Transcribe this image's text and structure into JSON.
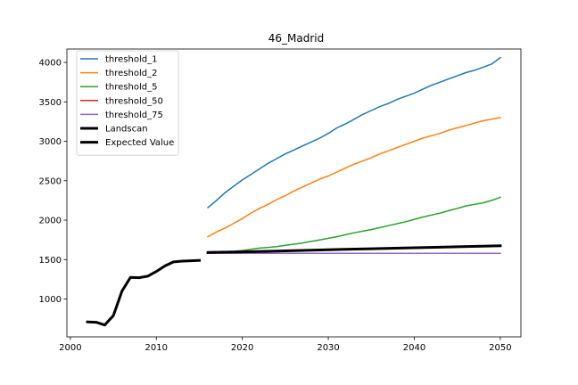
{
  "chart_data": {
    "type": "line",
    "title": "46_Madrid",
    "xlabel": "",
    "ylabel": "",
    "xlim": [
      1999.6,
      2052.4
    ],
    "ylim": [
      520,
      4170
    ],
    "xticks": [
      2000,
      2010,
      2020,
      2030,
      2040,
      2050
    ],
    "yticks": [
      1000,
      1500,
      2000,
      2500,
      3000,
      3500,
      4000
    ],
    "grid": false,
    "legend_position": "top-left",
    "series": [
      {
        "name": "threshold_1",
        "color": "#1f77b4",
        "width": 1.5,
        "x": [
          2016,
          2017,
          2018,
          2019,
          2020,
          2021,
          2022,
          2023,
          2024,
          2025,
          2026,
          2027,
          2028,
          2029,
          2030,
          2031,
          2032,
          2033,
          2034,
          2035,
          2036,
          2037,
          2038,
          2039,
          2040,
          2041,
          2042,
          2043,
          2044,
          2045,
          2046,
          2047,
          2048,
          2049,
          2050
        ],
        "y": [
          2160,
          2250,
          2350,
          2430,
          2510,
          2580,
          2650,
          2720,
          2780,
          2840,
          2890,
          2940,
          2990,
          3040,
          3100,
          3170,
          3220,
          3280,
          3340,
          3390,
          3440,
          3480,
          3530,
          3570,
          3610,
          3660,
          3710,
          3750,
          3790,
          3830,
          3870,
          3900,
          3940,
          3980,
          4060
        ]
      },
      {
        "name": "threshold_2",
        "color": "#ff7f0e",
        "width": 1.5,
        "x": [
          2016,
          2017,
          2018,
          2019,
          2020,
          2021,
          2022,
          2023,
          2024,
          2025,
          2026,
          2027,
          2028,
          2029,
          2030,
          2031,
          2032,
          2033,
          2034,
          2035,
          2036,
          2037,
          2038,
          2039,
          2040,
          2041,
          2042,
          2043,
          2044,
          2045,
          2046,
          2047,
          2048,
          2049,
          2050
        ],
        "y": [
          1790,
          1850,
          1900,
          1960,
          2020,
          2090,
          2150,
          2200,
          2260,
          2310,
          2370,
          2420,
          2470,
          2520,
          2560,
          2610,
          2660,
          2710,
          2750,
          2790,
          2840,
          2880,
          2920,
          2960,
          3000,
          3040,
          3070,
          3100,
          3140,
          3170,
          3200,
          3230,
          3260,
          3280,
          3300
        ]
      },
      {
        "name": "threshold_5",
        "color": "#2ca02c",
        "width": 1.5,
        "x": [
          2016,
          2017,
          2018,
          2019,
          2020,
          2021,
          2022,
          2023,
          2024,
          2025,
          2026,
          2027,
          2028,
          2029,
          2030,
          2031,
          2032,
          2033,
          2034,
          2035,
          2036,
          2037,
          2038,
          2039,
          2040,
          2041,
          2042,
          2043,
          2044,
          2045,
          2046,
          2047,
          2048,
          2049,
          2050
        ],
        "y": [
          1590,
          1595,
          1600,
          1605,
          1615,
          1630,
          1645,
          1655,
          1665,
          1680,
          1695,
          1710,
          1730,
          1750,
          1770,
          1790,
          1815,
          1840,
          1860,
          1880,
          1905,
          1930,
          1955,
          1980,
          2010,
          2040,
          2065,
          2090,
          2120,
          2150,
          2180,
          2200,
          2220,
          2250,
          2290
        ]
      },
      {
        "name": "threshold_50",
        "color": "#d62728",
        "width": 1.5,
        "x": [
          2016,
          2050
        ],
        "y": [
          1580,
          1580
        ]
      },
      {
        "name": "threshold_75",
        "color": "#9467bd",
        "width": 1.5,
        "x": [
          2016,
          2050
        ],
        "y": [
          1580,
          1580
        ]
      },
      {
        "name": "Landscan",
        "color": "#000000",
        "width": 3,
        "x": [
          2002,
          2003,
          2004,
          2005,
          2006,
          2007,
          2008,
          2009,
          2010,
          2011,
          2012,
          2013,
          2014,
          2015
        ],
        "y": [
          710,
          705,
          670,
          790,
          1100,
          1275,
          1270,
          1290,
          1350,
          1420,
          1470,
          1480,
          1485,
          1490
        ]
      },
      {
        "name": "Expected Value",
        "color": "#000000",
        "width": 3,
        "x": [
          2016,
          2020,
          2025,
          2030,
          2035,
          2040,
          2045,
          2050
        ],
        "y": [
          1590,
          1598,
          1610,
          1625,
          1638,
          1650,
          1662,
          1675
        ]
      }
    ]
  }
}
